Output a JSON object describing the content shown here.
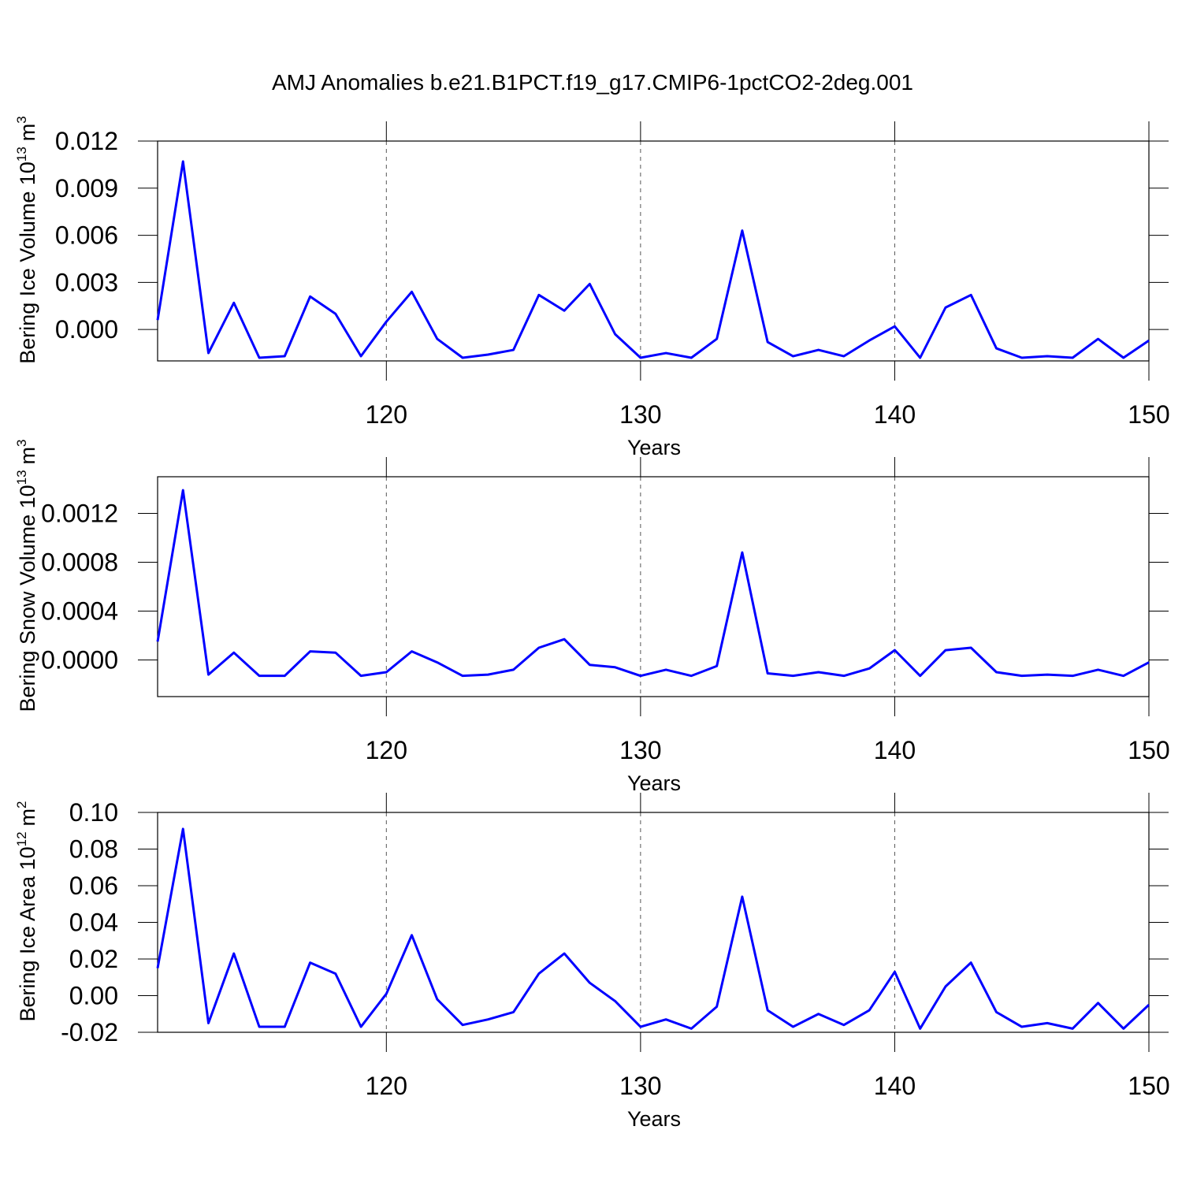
{
  "title": "AMJ Anomalies b.e21.B1PCT.f19_g17.CMIP6-1pctCO2-2deg.001",
  "chart_data": [
    {
      "type": "line",
      "ylabel": {
        "base": "Bering Ice Volume 10",
        "exp": "13",
        "unit": "m",
        "unit_exp": "3"
      },
      "xlabel": "Years",
      "x": [
        111,
        112,
        113,
        114,
        115,
        116,
        117,
        118,
        119,
        120,
        121,
        122,
        123,
        124,
        125,
        126,
        127,
        128,
        129,
        130,
        131,
        132,
        133,
        134,
        135,
        136,
        137,
        138,
        139,
        140,
        141,
        142,
        143,
        144,
        145,
        146,
        147,
        148,
        149,
        150
      ],
      "series": [
        {
          "color": "#0000ff",
          "values": [
            0.0006,
            0.0107,
            -0.0015,
            0.0017,
            -0.0018,
            -0.0017,
            0.0021,
            0.001,
            -0.0017,
            0.0005,
            0.0024,
            -0.0006,
            -0.0018,
            -0.0016,
            -0.0013,
            0.0022,
            0.0012,
            0.0029,
            -0.0003,
            -0.0018,
            -0.0015,
            -0.0018,
            -0.0006,
            0.0063,
            -0.0008,
            -0.0017,
            -0.0013,
            -0.0017,
            -0.0007,
            0.0002,
            -0.0018,
            0.0014,
            0.0022,
            -0.0012,
            -0.0018,
            -0.0017,
            -0.0018,
            -0.0006,
            -0.0018,
            -0.0007
          ]
        }
      ],
      "xlim": [
        111,
        150
      ],
      "xticks": [
        120,
        130,
        140,
        150
      ],
      "ylim": [
        -0.002,
        0.012
      ],
      "yticks": [
        {
          "value": 0,
          "label": "0.000"
        },
        0.003,
        0.006,
        0.009,
        0.012
      ],
      "grid": "x"
    },
    {
      "type": "line",
      "ylabel": {
        "base": "Bering Snow Volume 10",
        "exp": "13",
        "unit": "m",
        "unit_exp": "3"
      },
      "xlabel": "Years",
      "x": [
        111,
        112,
        113,
        114,
        115,
        116,
        117,
        118,
        119,
        120,
        121,
        122,
        123,
        124,
        125,
        126,
        127,
        128,
        129,
        130,
        131,
        132,
        133,
        134,
        135,
        136,
        137,
        138,
        139,
        140,
        141,
        142,
        143,
        144,
        145,
        146,
        147,
        148,
        149,
        150
      ],
      "series": [
        {
          "color": "#0000ff",
          "values": [
            0.00015,
            0.00139,
            -0.00012,
            6e-05,
            -0.00013,
            -0.00013,
            7e-05,
            6e-05,
            -0.00013,
            -0.0001,
            7e-05,
            -2e-05,
            -0.00013,
            -0.00012,
            -8e-05,
            0.0001,
            0.00017,
            -4e-05,
            -6e-05,
            -0.00013,
            -8e-05,
            -0.00013,
            -5e-05,
            0.00088,
            -0.00011,
            -0.00013,
            -0.0001,
            -0.00013,
            -7e-05,
            8e-05,
            -0.00013,
            8e-05,
            0.0001,
            -0.0001,
            -0.00013,
            -0.00012,
            -0.00013,
            -8e-05,
            -0.00013,
            -2e-05
          ]
        }
      ],
      "xlim": [
        111,
        150
      ],
      "xticks": [
        120,
        130,
        140,
        150
      ],
      "ylim": [
        -0.0003,
        0.0015
      ],
      "yticks": [
        {
          "value": 0,
          "label": "0.0000"
        },
        0.0004,
        0.0008,
        0.0012
      ],
      "grid": "x"
    },
    {
      "type": "line",
      "ylabel": {
        "base": "Bering Ice Area 10",
        "exp": "12",
        "unit": "m",
        "unit_exp": "2"
      },
      "xlabel": "Years",
      "x": [
        111,
        112,
        113,
        114,
        115,
        116,
        117,
        118,
        119,
        120,
        121,
        122,
        123,
        124,
        125,
        126,
        127,
        128,
        129,
        130,
        131,
        132,
        133,
        134,
        135,
        136,
        137,
        138,
        139,
        140,
        141,
        142,
        143,
        144,
        145,
        146,
        147,
        148,
        149,
        150
      ],
      "series": [
        {
          "color": "#0000ff",
          "values": [
            0.015,
            0.091,
            -0.015,
            0.023,
            -0.017,
            -0.017,
            0.018,
            0.012,
            -0.017,
            0.001,
            0.033,
            -0.002,
            -0.016,
            -0.013,
            -0.009,
            0.012,
            0.023,
            0.007,
            -0.003,
            -0.017,
            -0.013,
            -0.018,
            -0.006,
            0.054,
            -0.008,
            -0.017,
            -0.01,
            -0.016,
            -0.008,
            0.013,
            -0.018,
            0.005,
            0.018,
            -0.009,
            -0.017,
            -0.015,
            -0.018,
            -0.004,
            -0.018,
            -0.005
          ]
        }
      ],
      "xlim": [
        111,
        150
      ],
      "xticks": [
        120,
        130,
        140,
        150
      ],
      "ylim": [
        -0.02,
        0.1
      ],
      "yticks": [
        -0.02,
        {
          "value": 0,
          "label": "0.00"
        },
        0.02,
        0.04,
        0.06,
        0.08,
        {
          "value": 0.1,
          "label": "0.10"
        }
      ],
      "grid": "x"
    }
  ]
}
